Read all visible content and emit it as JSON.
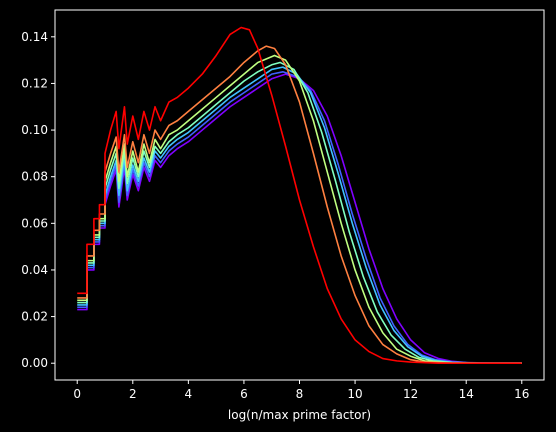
{
  "chart_data": {
    "type": "line",
    "title": "",
    "xlabel": "log(n/max prime factor)",
    "ylabel": "",
    "xlim": [
      -0.8,
      16.8
    ],
    "ylim": [
      -0.0072,
      0.1515
    ],
    "xticks": [
      0,
      2,
      4,
      6,
      8,
      10,
      12,
      14,
      16
    ],
    "yticks": [
      0.0,
      0.02,
      0.04,
      0.06,
      0.08,
      0.1,
      0.12,
      0.14
    ],
    "xtick_labels": [
      "0",
      "2",
      "4",
      "6",
      "8",
      "10",
      "12",
      "14",
      "16"
    ],
    "ytick_labels": [
      "0.00",
      "0.02",
      "0.04",
      "0.06",
      "0.08",
      "0.10",
      "0.12",
      "0.14"
    ],
    "grid": false,
    "background": "#000000",
    "series": [
      {
        "color": "#ff0000",
        "peak_x": 5.9,
        "peak_y": 0.144,
        "points": [
          [
            0,
            0.03
          ],
          [
            0.35,
            0.03
          ],
          [
            0.35,
            0.051
          ],
          [
            0.6,
            0.051
          ],
          [
            0.6,
            0.062
          ],
          [
            0.8,
            0.062
          ],
          [
            0.8,
            0.068
          ],
          [
            1.0,
            0.068
          ],
          [
            1.0,
            0.09
          ],
          [
            1.2,
            0.1
          ],
          [
            1.4,
            0.108
          ],
          [
            1.5,
            0.092
          ],
          [
            1.7,
            0.11
          ],
          [
            1.8,
            0.094
          ],
          [
            2.0,
            0.106
          ],
          [
            2.2,
            0.096
          ],
          [
            2.4,
            0.108
          ],
          [
            2.6,
            0.1
          ],
          [
            2.8,
            0.11
          ],
          [
            3.0,
            0.104
          ],
          [
            3.3,
            0.112
          ],
          [
            3.6,
            0.114
          ],
          [
            4.0,
            0.118
          ],
          [
            4.5,
            0.124
          ],
          [
            5.0,
            0.132
          ],
          [
            5.5,
            0.141
          ],
          [
            5.9,
            0.144
          ],
          [
            6.2,
            0.143
          ],
          [
            6.5,
            0.135
          ],
          [
            7.0,
            0.115
          ],
          [
            7.5,
            0.093
          ],
          [
            8.0,
            0.07
          ],
          [
            8.5,
            0.05
          ],
          [
            9.0,
            0.032
          ],
          [
            9.5,
            0.019
          ],
          [
            10.0,
            0.01
          ],
          [
            10.5,
            0.005
          ],
          [
            11.0,
            0.002
          ],
          [
            11.5,
            0.001
          ],
          [
            12.0,
            0.0005
          ],
          [
            13.0,
            0.0
          ],
          [
            14.0,
            0.0
          ],
          [
            16.0,
            0.0
          ]
        ]
      },
      {
        "color": "#ff8040",
        "peak_x": 6.8,
        "peak_y": 0.136,
        "points": [
          [
            0,
            0.028
          ],
          [
            0.35,
            0.028
          ],
          [
            0.35,
            0.046
          ],
          [
            0.6,
            0.046
          ],
          [
            0.6,
            0.057
          ],
          [
            0.8,
            0.057
          ],
          [
            0.8,
            0.064
          ],
          [
            1.0,
            0.064
          ],
          [
            1.0,
            0.082
          ],
          [
            1.2,
            0.09
          ],
          [
            1.4,
            0.097
          ],
          [
            1.5,
            0.082
          ],
          [
            1.7,
            0.098
          ],
          [
            1.8,
            0.084
          ],
          [
            2.0,
            0.095
          ],
          [
            2.2,
            0.086
          ],
          [
            2.4,
            0.098
          ],
          [
            2.6,
            0.09
          ],
          [
            2.8,
            0.1
          ],
          [
            3.0,
            0.096
          ],
          [
            3.3,
            0.102
          ],
          [
            3.6,
            0.104
          ],
          [
            4.0,
            0.108
          ],
          [
            4.5,
            0.113
          ],
          [
            5.0,
            0.118
          ],
          [
            5.5,
            0.123
          ],
          [
            6.0,
            0.129
          ],
          [
            6.5,
            0.134
          ],
          [
            6.8,
            0.136
          ],
          [
            7.1,
            0.135
          ],
          [
            7.5,
            0.128
          ],
          [
            8.0,
            0.112
          ],
          [
            8.5,
            0.09
          ],
          [
            9.0,
            0.067
          ],
          [
            9.5,
            0.046
          ],
          [
            10.0,
            0.029
          ],
          [
            10.5,
            0.016
          ],
          [
            11.0,
            0.008
          ],
          [
            11.5,
            0.004
          ],
          [
            12.0,
            0.0015
          ],
          [
            12.5,
            0.0005
          ],
          [
            13.5,
            0.0
          ],
          [
            16.0,
            0.0
          ]
        ]
      },
      {
        "color": "#c0ff80",
        "peak_x": 7.1,
        "peak_y": 0.132,
        "points": [
          [
            0,
            0.027
          ],
          [
            0.35,
            0.027
          ],
          [
            0.35,
            0.044
          ],
          [
            0.6,
            0.044
          ],
          [
            0.6,
            0.055
          ],
          [
            0.8,
            0.055
          ],
          [
            0.8,
            0.062
          ],
          [
            1.0,
            0.062
          ],
          [
            1.0,
            0.078
          ],
          [
            1.2,
            0.086
          ],
          [
            1.4,
            0.093
          ],
          [
            1.5,
            0.078
          ],
          [
            1.7,
            0.094
          ],
          [
            1.8,
            0.08
          ],
          [
            2.0,
            0.091
          ],
          [
            2.2,
            0.082
          ],
          [
            2.4,
            0.094
          ],
          [
            2.6,
            0.086
          ],
          [
            2.8,
            0.096
          ],
          [
            3.0,
            0.092
          ],
          [
            3.3,
            0.098
          ],
          [
            3.6,
            0.1
          ],
          [
            4.0,
            0.104
          ],
          [
            4.5,
            0.109
          ],
          [
            5.0,
            0.114
          ],
          [
            5.5,
            0.119
          ],
          [
            6.0,
            0.124
          ],
          [
            6.5,
            0.129
          ],
          [
            7.1,
            0.132
          ],
          [
            7.5,
            0.13
          ],
          [
            8.0,
            0.121
          ],
          [
            8.5,
            0.104
          ],
          [
            9.0,
            0.082
          ],
          [
            9.5,
            0.06
          ],
          [
            10.0,
            0.04
          ],
          [
            10.5,
            0.024
          ],
          [
            11.0,
            0.013
          ],
          [
            11.5,
            0.006
          ],
          [
            12.0,
            0.003
          ],
          [
            12.5,
            0.001
          ],
          [
            13.5,
            0.0
          ],
          [
            16.0,
            0.0
          ]
        ]
      },
      {
        "color": "#80ffc0",
        "peak_x": 7.3,
        "peak_y": 0.129,
        "points": [
          [
            0,
            0.026
          ],
          [
            0.35,
            0.026
          ],
          [
            0.35,
            0.043
          ],
          [
            0.6,
            0.043
          ],
          [
            0.6,
            0.054
          ],
          [
            0.8,
            0.054
          ],
          [
            0.8,
            0.061
          ],
          [
            1.0,
            0.061
          ],
          [
            1.0,
            0.075
          ],
          [
            1.2,
            0.083
          ],
          [
            1.4,
            0.09
          ],
          [
            1.5,
            0.075
          ],
          [
            1.7,
            0.091
          ],
          [
            1.8,
            0.077
          ],
          [
            2.0,
            0.088
          ],
          [
            2.2,
            0.08
          ],
          [
            2.4,
            0.091
          ],
          [
            2.6,
            0.084
          ],
          [
            2.8,
            0.093
          ],
          [
            3.0,
            0.09
          ],
          [
            3.3,
            0.095
          ],
          [
            3.6,
            0.098
          ],
          [
            4.0,
            0.101
          ],
          [
            4.5,
            0.106
          ],
          [
            5.0,
            0.111
          ],
          [
            5.5,
            0.116
          ],
          [
            6.0,
            0.121
          ],
          [
            6.5,
            0.125
          ],
          [
            7.0,
            0.128
          ],
          [
            7.3,
            0.129
          ],
          [
            7.8,
            0.126
          ],
          [
            8.3,
            0.116
          ],
          [
            8.8,
            0.099
          ],
          [
            9.3,
            0.078
          ],
          [
            9.8,
            0.056
          ],
          [
            10.3,
            0.037
          ],
          [
            10.8,
            0.022
          ],
          [
            11.3,
            0.012
          ],
          [
            11.8,
            0.006
          ],
          [
            12.3,
            0.0025
          ],
          [
            12.8,
            0.001
          ],
          [
            13.5,
            0.0003
          ],
          [
            14.5,
            0.0
          ],
          [
            16.0,
            0.0
          ]
        ]
      },
      {
        "color": "#40c0ff",
        "peak_x": 7.4,
        "peak_y": 0.127,
        "points": [
          [
            0,
            0.025
          ],
          [
            0.35,
            0.025
          ],
          [
            0.35,
            0.042
          ],
          [
            0.6,
            0.042
          ],
          [
            0.6,
            0.053
          ],
          [
            0.8,
            0.053
          ],
          [
            0.8,
            0.06
          ],
          [
            1.0,
            0.06
          ],
          [
            1.0,
            0.072
          ],
          [
            1.2,
            0.08
          ],
          [
            1.4,
            0.087
          ],
          [
            1.5,
            0.072
          ],
          [
            1.7,
            0.088
          ],
          [
            1.8,
            0.074
          ],
          [
            2.0,
            0.085
          ],
          [
            2.2,
            0.078
          ],
          [
            2.4,
            0.088
          ],
          [
            2.6,
            0.082
          ],
          [
            2.8,
            0.091
          ],
          [
            3.0,
            0.088
          ],
          [
            3.3,
            0.093
          ],
          [
            3.6,
            0.096
          ],
          [
            4.0,
            0.099
          ],
          [
            4.5,
            0.104
          ],
          [
            5.0,
            0.109
          ],
          [
            5.5,
            0.114
          ],
          [
            6.0,
            0.118
          ],
          [
            6.5,
            0.122
          ],
          [
            7.0,
            0.126
          ],
          [
            7.4,
            0.127
          ],
          [
            7.9,
            0.124
          ],
          [
            8.4,
            0.116
          ],
          [
            8.9,
            0.101
          ],
          [
            9.4,
            0.081
          ],
          [
            9.9,
            0.06
          ],
          [
            10.4,
            0.041
          ],
          [
            10.9,
            0.025
          ],
          [
            11.4,
            0.014
          ],
          [
            11.9,
            0.007
          ],
          [
            12.4,
            0.003
          ],
          [
            12.9,
            0.0012
          ],
          [
            13.5,
            0.0004
          ],
          [
            14.5,
            0.0
          ],
          [
            16.0,
            0.0
          ]
        ]
      },
      {
        "color": "#4060ff",
        "peak_x": 7.4,
        "peak_y": 0.125,
        "points": [
          [
            0,
            0.024
          ],
          [
            0.35,
            0.024
          ],
          [
            0.35,
            0.041
          ],
          [
            0.6,
            0.041
          ],
          [
            0.6,
            0.052
          ],
          [
            0.8,
            0.052
          ],
          [
            0.8,
            0.059
          ],
          [
            1.0,
            0.059
          ],
          [
            1.0,
            0.07
          ],
          [
            1.2,
            0.078
          ],
          [
            1.4,
            0.085
          ],
          [
            1.5,
            0.069
          ],
          [
            1.7,
            0.086
          ],
          [
            1.8,
            0.072
          ],
          [
            2.0,
            0.083
          ],
          [
            2.2,
            0.076
          ],
          [
            2.4,
            0.086
          ],
          [
            2.6,
            0.08
          ],
          [
            2.8,
            0.089
          ],
          [
            3.0,
            0.086
          ],
          [
            3.3,
            0.091
          ],
          [
            3.6,
            0.094
          ],
          [
            4.0,
            0.097
          ],
          [
            4.5,
            0.102
          ],
          [
            5.0,
            0.107
          ],
          [
            5.5,
            0.112
          ],
          [
            6.0,
            0.116
          ],
          [
            6.5,
            0.12
          ],
          [
            7.0,
            0.124
          ],
          [
            7.4,
            0.125
          ],
          [
            7.9,
            0.123
          ],
          [
            8.4,
            0.117
          ],
          [
            8.9,
            0.104
          ],
          [
            9.4,
            0.085
          ],
          [
            9.9,
            0.064
          ],
          [
            10.4,
            0.045
          ],
          [
            10.9,
            0.028
          ],
          [
            11.4,
            0.016
          ],
          [
            11.9,
            0.008
          ],
          [
            12.4,
            0.0035
          ],
          [
            12.9,
            0.0015
          ],
          [
            13.5,
            0.0005
          ],
          [
            14.5,
            0.0
          ],
          [
            16.0,
            0.0
          ]
        ]
      },
      {
        "color": "#8000ff",
        "peak_x": 7.5,
        "peak_y": 0.124,
        "points": [
          [
            0,
            0.023
          ],
          [
            0.35,
            0.023
          ],
          [
            0.35,
            0.04
          ],
          [
            0.6,
            0.04
          ],
          [
            0.6,
            0.051
          ],
          [
            0.8,
            0.051
          ],
          [
            0.8,
            0.058
          ],
          [
            1.0,
            0.058
          ],
          [
            1.0,
            0.068
          ],
          [
            1.2,
            0.076
          ],
          [
            1.4,
            0.083
          ],
          [
            1.5,
            0.067
          ],
          [
            1.7,
            0.084
          ],
          [
            1.8,
            0.07
          ],
          [
            2.0,
            0.081
          ],
          [
            2.2,
            0.074
          ],
          [
            2.4,
            0.084
          ],
          [
            2.6,
            0.078
          ],
          [
            2.8,
            0.087
          ],
          [
            3.0,
            0.084
          ],
          [
            3.3,
            0.089
          ],
          [
            3.6,
            0.092
          ],
          [
            4.0,
            0.095
          ],
          [
            4.5,
            0.1
          ],
          [
            5.0,
            0.105
          ],
          [
            5.5,
            0.11
          ],
          [
            6.0,
            0.114
          ],
          [
            6.5,
            0.118
          ],
          [
            7.0,
            0.122
          ],
          [
            7.5,
            0.124
          ],
          [
            8.0,
            0.122
          ],
          [
            8.5,
            0.117
          ],
          [
            9.0,
            0.106
          ],
          [
            9.5,
            0.089
          ],
          [
            10.0,
            0.069
          ],
          [
            10.5,
            0.049
          ],
          [
            11.0,
            0.032
          ],
          [
            11.5,
            0.019
          ],
          [
            12.0,
            0.01
          ],
          [
            12.5,
            0.0045
          ],
          [
            13.0,
            0.002
          ],
          [
            13.5,
            0.0008
          ],
          [
            14.0,
            0.0003
          ],
          [
            15.0,
            0.0
          ],
          [
            16.0,
            0.0
          ]
        ]
      }
    ]
  }
}
